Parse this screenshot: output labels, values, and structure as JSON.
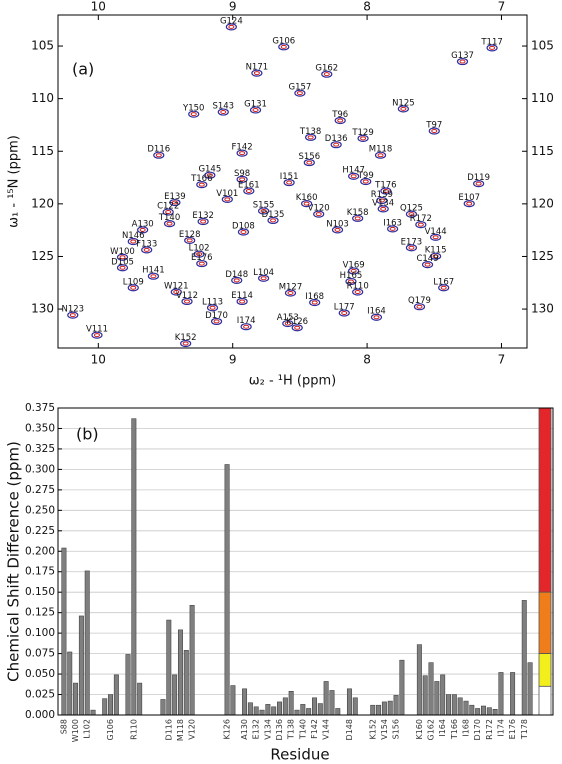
{
  "chart_data": [
    {
      "type": "scatter",
      "panel_label": "(a)",
      "x_label": "ω₂ - ¹H (ppm)",
      "y_label": "ω₁ - ¹⁵N (ppm)",
      "xlim": [
        10.3,
        6.81
      ],
      "ylim": [
        102.05,
        133.7
      ],
      "xticks": [
        10,
        9,
        8,
        7
      ],
      "yticks": [
        105,
        110,
        115,
        120,
        125,
        130
      ],
      "colors": [
        "#2e2e9c",
        "#d01818"
      ],
      "peaks": [
        {
          "label": "G124",
          "x": 9.01,
          "y": 102.7
        },
        {
          "label": "G106",
          "x": 8.62,
          "y": 104.6
        },
        {
          "label": "T117",
          "x": 7.07,
          "y": 104.7
        },
        {
          "label": "G137",
          "x": 7.29,
          "y": 106.0
        },
        {
          "label": "G162",
          "x": 8.3,
          "y": 107.2
        },
        {
          "label": "N171",
          "x": 8.82,
          "y": 107.1
        },
        {
          "label": "G157",
          "x": 8.5,
          "y": 109.0
        },
        {
          "label": "G131",
          "x": 8.83,
          "y": 110.6
        },
        {
          "label": "N125",
          "x": 7.73,
          "y": 110.5
        },
        {
          "label": "T96",
          "x": 8.2,
          "y": 111.6
        },
        {
          "label": "S143",
          "x": 9.07,
          "y": 110.8
        },
        {
          "label": "Y150",
          "x": 9.29,
          "y": 111.0
        },
        {
          "label": "T138",
          "x": 8.42,
          "y": 113.2
        },
        {
          "label": "T129",
          "x": 8.03,
          "y": 113.3
        },
        {
          "label": "T97",
          "x": 7.5,
          "y": 112.6
        },
        {
          "label": "D136",
          "x": 8.23,
          "y": 113.9
        },
        {
          "label": "M118",
          "x": 7.9,
          "y": 114.9
        },
        {
          "label": "F142",
          "x": 8.93,
          "y": 114.7
        },
        {
          "label": "D116",
          "x": 9.55,
          "y": 114.9
        },
        {
          "label": "S156",
          "x": 8.43,
          "y": 115.6
        },
        {
          "label": "H147",
          "x": 8.1,
          "y": 116.9
        },
        {
          "label": "G145",
          "x": 9.17,
          "y": 116.8
        },
        {
          "label": "I151",
          "x": 8.58,
          "y": 117.5
        },
        {
          "label": "S98",
          "x": 8.93,
          "y": 117.2
        },
        {
          "label": "T166",
          "x": 9.23,
          "y": 117.7
        },
        {
          "label": "T99",
          "x": 8.01,
          "y": 117.4
        },
        {
          "label": "E161",
          "x": 8.88,
          "y": 118.3
        },
        {
          "label": "T176",
          "x": 7.86,
          "y": 118.3
        },
        {
          "label": "D119",
          "x": 7.17,
          "y": 117.6
        },
        {
          "label": "E139",
          "x": 9.43,
          "y": 119.4
        },
        {
          "label": "V101",
          "x": 9.04,
          "y": 119.1
        },
        {
          "label": "R159",
          "x": 7.89,
          "y": 119.2
        },
        {
          "label": "V134",
          "x": 7.88,
          "y": 120.0
        },
        {
          "label": "C122",
          "x": 9.48,
          "y": 120.3
        },
        {
          "label": "S155",
          "x": 8.77,
          "y": 120.2
        },
        {
          "label": "V120",
          "x": 8.36,
          "y": 120.5
        },
        {
          "label": "K160",
          "x": 8.45,
          "y": 119.5
        },
        {
          "label": "E107",
          "x": 7.24,
          "y": 119.5
        },
        {
          "label": "Q125",
          "x": 7.67,
          "y": 120.5
        },
        {
          "label": "E132",
          "x": 9.22,
          "y": 121.2
        },
        {
          "label": "D135",
          "x": 8.7,
          "y": 121.1
        },
        {
          "label": "K158",
          "x": 8.07,
          "y": 120.9
        },
        {
          "label": "R172",
          "x": 7.6,
          "y": 121.5
        },
        {
          "label": "T140",
          "x": 9.47,
          "y": 121.4
        },
        {
          "label": "A130",
          "x": 9.67,
          "y": 122.0
        },
        {
          "label": "D108",
          "x": 8.92,
          "y": 122.2
        },
        {
          "label": "I163",
          "x": 7.81,
          "y": 121.9
        },
        {
          "label": "N103",
          "x": 8.22,
          "y": 122.0
        },
        {
          "label": "E128",
          "x": 9.32,
          "y": 123.0
        },
        {
          "label": "V144",
          "x": 7.49,
          "y": 122.7
        },
        {
          "label": "N146",
          "x": 9.74,
          "y": 123.1
        },
        {
          "label": "E173",
          "x": 7.67,
          "y": 123.7
        },
        {
          "label": "F133",
          "x": 9.64,
          "y": 123.9
        },
        {
          "label": "L102",
          "x": 9.25,
          "y": 124.3
        },
        {
          "label": "W100",
          "x": 9.82,
          "y": 124.6
        },
        {
          "label": "K115",
          "x": 7.49,
          "y": 124.5
        },
        {
          "label": "C149",
          "x": 7.55,
          "y": 125.3
        },
        {
          "label": "E176",
          "x": 9.23,
          "y": 125.2
        },
        {
          "label": "D105",
          "x": 9.82,
          "y": 125.6
        },
        {
          "label": "V169",
          "x": 8.1,
          "y": 125.9
        },
        {
          "label": "H141",
          "x": 9.59,
          "y": 126.4
        },
        {
          "label": "H165",
          "x": 8.12,
          "y": 126.9
        },
        {
          "label": "L104",
          "x": 8.77,
          "y": 126.6
        },
        {
          "label": "D148",
          "x": 8.97,
          "y": 126.8
        },
        {
          "label": "L167",
          "x": 7.43,
          "y": 127.5
        },
        {
          "label": "L109",
          "x": 9.74,
          "y": 127.5
        },
        {
          "label": "W121",
          "x": 9.42,
          "y": 127.9
        },
        {
          "label": "R110",
          "x": 8.07,
          "y": 127.9
        },
        {
          "label": "M127",
          "x": 8.57,
          "y": 128.0
        },
        {
          "label": "E114",
          "x": 8.93,
          "y": 128.8
        },
        {
          "label": "V112",
          "x": 9.34,
          "y": 128.8
        },
        {
          "label": "L113",
          "x": 9.15,
          "y": 129.4
        },
        {
          "label": "I168",
          "x": 8.39,
          "y": 128.9
        },
        {
          "label": "Q179",
          "x": 7.61,
          "y": 129.3
        },
        {
          "label": "L177",
          "x": 8.17,
          "y": 129.9
        },
        {
          "label": "I164",
          "x": 7.93,
          "y": 130.3
        },
        {
          "label": "N123",
          "x": 10.19,
          "y": 130.1
        },
        {
          "label": "D170",
          "x": 9.12,
          "y": 130.7
        },
        {
          "label": "A153",
          "x": 8.59,
          "y": 130.9
        },
        {
          "label": "I174",
          "x": 8.9,
          "y": 131.2
        },
        {
          "label": "K126",
          "x": 8.52,
          "y": 131.3
        },
        {
          "label": "V111",
          "x": 10.01,
          "y": 132.0
        },
        {
          "label": "K152",
          "x": 9.35,
          "y": 132.8
        }
      ]
    },
    {
      "type": "bar",
      "panel_label": "(b)",
      "x_label": "Residue",
      "y_label": "Chemical Shift Difference (ppm)",
      "ylim": [
        0,
        0.375
      ],
      "yticks": [
        {
          "value": 0,
          "label": "0.000"
        },
        {
          "value": 0.025,
          "label": "0.025"
        },
        {
          "value": 0.05,
          "label": "0.050"
        },
        {
          "value": 0.075,
          "label": "0.075"
        },
        {
          "value": 0.1,
          "label": "0.100"
        },
        {
          "value": 0.125,
          "label": "0.125"
        },
        {
          "value": 0.15,
          "label": "0.150"
        },
        {
          "value": 0.175,
          "label": "0.175"
        },
        {
          "value": 0.2,
          "label": "0.200"
        },
        {
          "value": 0.225,
          "label": "0.225"
        },
        {
          "value": 0.25,
          "label": "0.250"
        },
        {
          "value": 0.275,
          "label": "0.275"
        },
        {
          "value": 0.3,
          "label": "0.300"
        },
        {
          "value": 0.325,
          "label": "0.325"
        },
        {
          "value": 0.35,
          "label": "0.350"
        },
        {
          "value": 0.375,
          "label": "0.375"
        }
      ],
      "grid": true,
      "color": "#7f7f7f",
      "categories": [
        "S88",
        null,
        "W100",
        null,
        "L102",
        null,
        null,
        null,
        "G106",
        null,
        null,
        null,
        "R110",
        null,
        null,
        null,
        null,
        null,
        "D116",
        null,
        "M118",
        null,
        "V120",
        null,
        null,
        null,
        null,
        null,
        "K126",
        null,
        null,
        "A130",
        null,
        "E132",
        null,
        "V134",
        null,
        "D136",
        null,
        "T138",
        null,
        "T140",
        null,
        "F142",
        null,
        "V144",
        null,
        null,
        null,
        "D148",
        null,
        null,
        null,
        "K152",
        null,
        "V154",
        null,
        "S156",
        null,
        null,
        null,
        "K160",
        null,
        "G162",
        null,
        "I164",
        null,
        "T166",
        null,
        "I168",
        null,
        "D170",
        null,
        "R172",
        null,
        "I174",
        null,
        "E176",
        null,
        "T178",
        null
      ],
      "values": [
        0.204,
        0.077,
        0.039,
        0.121,
        0.176,
        0.006,
        null,
        0.02,
        0.025,
        0.049,
        null,
        0.074,
        0.362,
        0.039,
        null,
        null,
        null,
        0.019,
        0.116,
        0.049,
        0.104,
        0.079,
        0.134,
        null,
        null,
        null,
        null,
        null,
        0.306,
        0.036,
        null,
        0.032,
        0.015,
        0.01,
        0.006,
        0.013,
        0.01,
        0.016,
        0.021,
        0.029,
        0.006,
        0.013,
        0.008,
        0.021,
        0.014,
        0.041,
        0.03,
        0.008,
        null,
        0.032,
        0.021,
        null,
        null,
        0.012,
        0.012,
        0.016,
        0.017,
        0.024,
        0.067,
        null,
        null,
        0.086,
        0.048,
        0.064,
        0.041,
        0.049,
        0.025,
        0.025,
        0.021,
        0.017,
        0.012,
        0.008,
        0.011,
        0.009,
        0.007,
        0.052,
        null,
        0.052,
        null,
        0.14,
        0.064
      ],
      "color_bands": [
        {
          "from": 0.15,
          "to": 0.375,
          "color": "#e3262a"
        },
        {
          "from": 0.075,
          "to": 0.15,
          "color": "#ef7d1a"
        },
        {
          "from": 0.035,
          "to": 0.075,
          "color": "#f3ef1c"
        },
        {
          "from": 0,
          "to": 0.035,
          "color": "#ffffff"
        }
      ]
    }
  ]
}
